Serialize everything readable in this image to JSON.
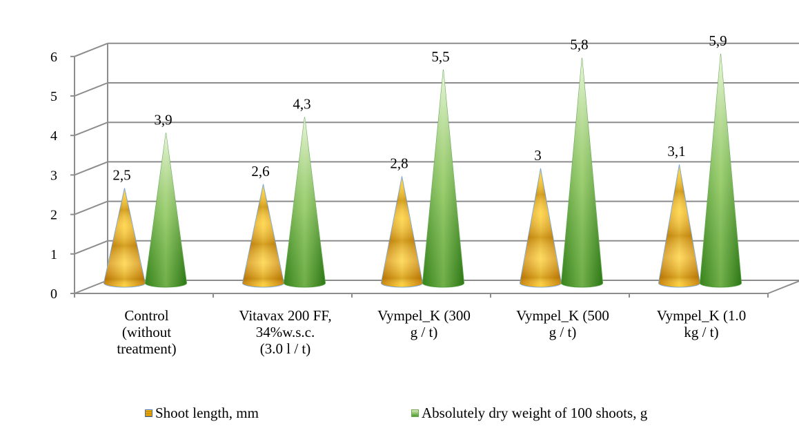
{
  "chart_data": {
    "type": "bar",
    "bar_shape": "cone",
    "categories": [
      [
        "Control",
        "(without",
        "treatment)"
      ],
      [
        "Vitavax 200 FF,",
        "34%w.s.c.",
        "(3.0 l / t)"
      ],
      [
        "Vympel_K (300",
        "g / t)"
      ],
      [
        "Vympel_K (500",
        "g / t)"
      ],
      [
        "Vympel_K (1.0",
        "kg / t)"
      ]
    ],
    "series": [
      {
        "name": "Shoot length, mm",
        "values": [
          2.5,
          2.6,
          2.8,
          3,
          3.1
        ],
        "labels": [
          "2,5",
          "2,6",
          "2,8",
          "3",
          "3,1"
        ],
        "color": "#f3b400"
      },
      {
        "name": "Absolutely dry weight of 100 shoots, g",
        "values": [
          3.9,
          4.3,
          5.5,
          5.8,
          5.9
        ],
        "labels": [
          "3,9",
          "4,3",
          "5,5",
          "5,8",
          "5,9"
        ],
        "color": "#4f9a2c"
      }
    ],
    "yticks": [
      "0",
      "1",
      "2",
      "3",
      "4",
      "5",
      "6"
    ],
    "ylim": [
      0,
      6
    ],
    "grid": true,
    "legend_position": "bottom"
  }
}
